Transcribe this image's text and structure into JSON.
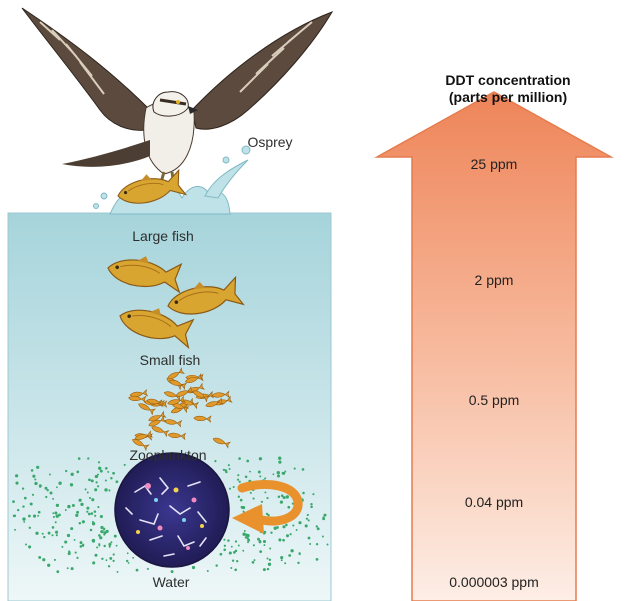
{
  "labels": {
    "osprey": "Osprey",
    "large_fish": "Large fish",
    "small_fish": "Small fish",
    "zooplankton": "Zooplankton",
    "water": "Water"
  },
  "scale": {
    "title_line1": "DDT concentration",
    "title_line2": "(parts per million)",
    "levels": [
      "25 ppm",
      "2 ppm",
      "0.5 ppm",
      "0.04 ppm",
      "0.000003 ppm"
    ]
  },
  "colors": {
    "water_top": "#a9d6dd",
    "water_bottom": "#e8f4f6",
    "arrow_top": "#ef8a5e",
    "arrow_bottom": "#fde9df",
    "fish_body": "#d9a531",
    "plankton_circle": "#2e2a6e",
    "curved_arrow": "#e8912d",
    "dots": "#3aa86c"
  },
  "icons": [
    "osprey-icon",
    "large-fish-icon",
    "small-fish-icon",
    "plankton-dots",
    "zooplankton-circle-icon",
    "curved-arrow-icon",
    "up-arrow-icon"
  ]
}
